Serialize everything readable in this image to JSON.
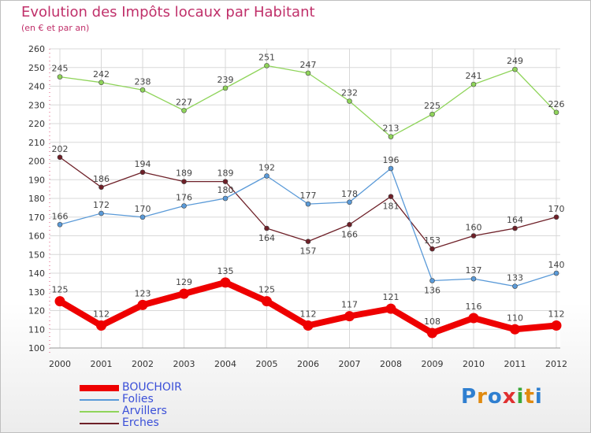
{
  "title": "Evolution des Impôts locaux par Habitant",
  "subtitle": "(en € et par an)",
  "logo": {
    "text": "Proxiti",
    "colors": [
      "#2f7fd0",
      "#e08a10",
      "#2f7fd0",
      "#e03030",
      "#3aa83a",
      "#e08a10",
      "#2f7fd0"
    ]
  },
  "chart_data": {
    "type": "line",
    "title": "Evolution des Impôts locaux par Habitant",
    "subtitle": "(en € et par an)",
    "x": [
      "2000",
      "2001",
      "2002",
      "2003",
      "2004",
      "2005",
      "2006",
      "2007",
      "2008",
      "2009",
      "2010",
      "2011",
      "2012"
    ],
    "ylim": [
      100,
      260
    ],
    "yticks": [
      100,
      110,
      120,
      130,
      140,
      150,
      160,
      170,
      180,
      190,
      200,
      210,
      220,
      230,
      240,
      250,
      260
    ],
    "grid": true,
    "legend": "bottom-left",
    "series": [
      {
        "name": "Arvillers",
        "color": "#8fd45a",
        "values": [
          245,
          242,
          238,
          227,
          239,
          251,
          247,
          232,
          213,
          225,
          241,
          249,
          226
        ]
      },
      {
        "name": "Erches",
        "color": "#6e2028",
        "values": [
          202,
          186,
          194,
          189,
          189,
          164,
          157,
          166,
          181,
          153,
          160,
          164,
          170
        ]
      },
      {
        "name": "Folies",
        "color": "#5a9ad8",
        "values": [
          166,
          172,
          170,
          176,
          180,
          192,
          177,
          178,
          196,
          136,
          137,
          133,
          140
        ]
      },
      {
        "name": "BOUCHOIR",
        "color": "#ee0000",
        "values": [
          125,
          112,
          123,
          129,
          135,
          125,
          112,
          117,
          121,
          108,
          116,
          110,
          112
        ]
      }
    ],
    "legend_order": [
      "BOUCHOIR",
      "Folies",
      "Arvillers",
      "Erches"
    ]
  }
}
